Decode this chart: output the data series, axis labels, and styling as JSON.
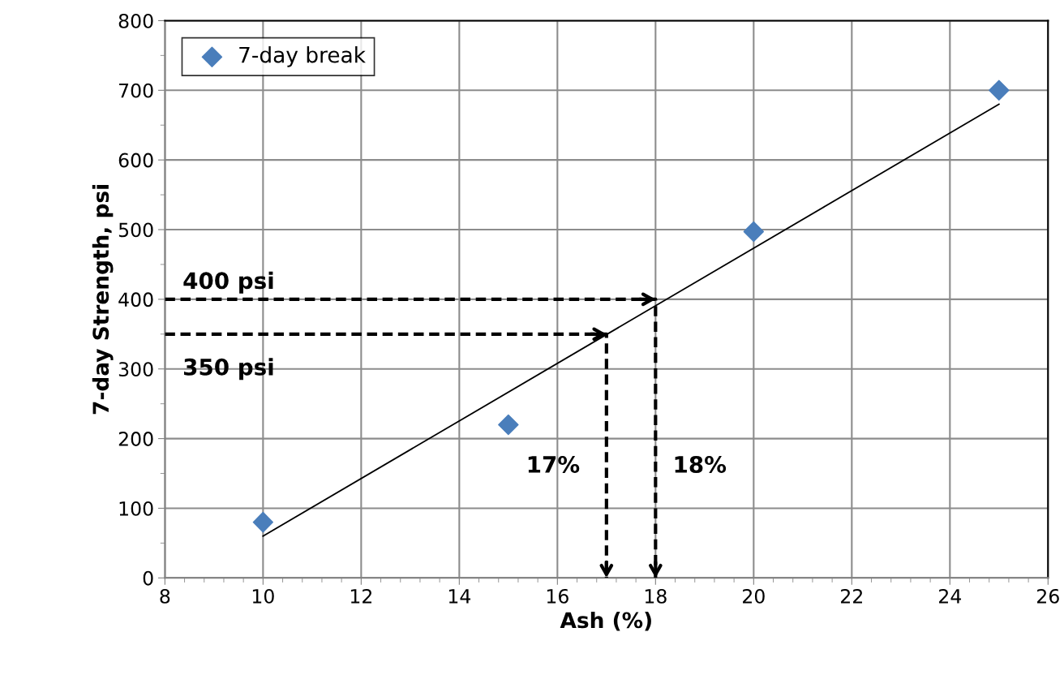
{
  "chart_data": {
    "type": "scatter",
    "xlabel": "Ash (%)",
    "ylabel": "7-day Strength, psi",
    "xlim": [
      8,
      26
    ],
    "xticks": [
      8,
      10,
      12,
      14,
      16,
      18,
      20,
      22,
      24,
      26
    ],
    "ylim": [
      0,
      800
    ],
    "yticks": [
      0,
      100,
      200,
      300,
      400,
      500,
      600,
      700,
      800
    ],
    "grid": true,
    "legend": "top left",
    "marker": "diamond",
    "series": [
      {
        "name": "7-day break",
        "color": "#4a7ebb",
        "x": [
          10,
          15,
          20,
          25
        ],
        "values": [
          80,
          220,
          497,
          700
        ]
      },
      {
        "type": "line",
        "color": "#000000",
        "marker": "none",
        "x": [
          10,
          25
        ],
        "values": [
          60,
          680
        ]
      },
      {
        "type": "line",
        "color": "#000000",
        "marker": "none",
        "line_style": "dashed",
        "x": [
          8,
          18,
          18
        ],
        "values": [
          400,
          400,
          0
        ]
      },
      {
        "type": "line",
        "color": "#000000",
        "marker": "none",
        "line_style": "dashed",
        "x": [
          8,
          17,
          17
        ],
        "values": [
          350,
          350,
          0
        ]
      }
    ],
    "annotations": [
      "400 psi",
      "350 psi",
      "17%",
      "18%"
    ]
  }
}
